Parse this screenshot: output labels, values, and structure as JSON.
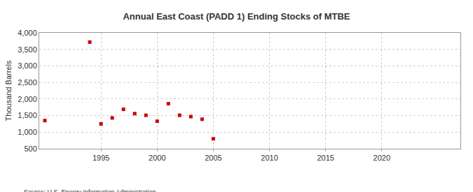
{
  "chart_data": {
    "type": "scatter",
    "title": "Annual East Coast (PADD 1) Ending Stocks of MTBE",
    "y_label": "Thousand Barrels",
    "source": "Source: U.S. Energy Information Administration",
    "x": [
      1990,
      1994,
      1995,
      1996,
      1997,
      1998,
      1999,
      2000,
      2001,
      2002,
      2003,
      2004,
      2005
    ],
    "values": [
      1350,
      3720,
      1250,
      1430,
      1690,
      1560,
      1510,
      1330,
      1860,
      1510,
      1470,
      1390,
      800
    ],
    "color": "#cc0000",
    "marker": "square",
    "xlim": [
      1989.5,
      2027
    ],
    "xticks": [
      1995,
      2000,
      2005,
      2010,
      2015,
      2020
    ],
    "ylim": [
      500,
      4000
    ],
    "yticks": [
      {
        "value": 500,
        "label": "500"
      },
      {
        "value": 1000,
        "label": "1,000"
      },
      {
        "value": 1500,
        "label": "1,500"
      },
      {
        "value": 2000,
        "label": "2,000"
      },
      {
        "value": 2500,
        "label": "2,500"
      },
      {
        "value": 3000,
        "label": "3,000"
      },
      {
        "value": 3500,
        "label": "3,500"
      },
      {
        "value": 4000,
        "label": "4,000"
      }
    ],
    "grid": true
  }
}
